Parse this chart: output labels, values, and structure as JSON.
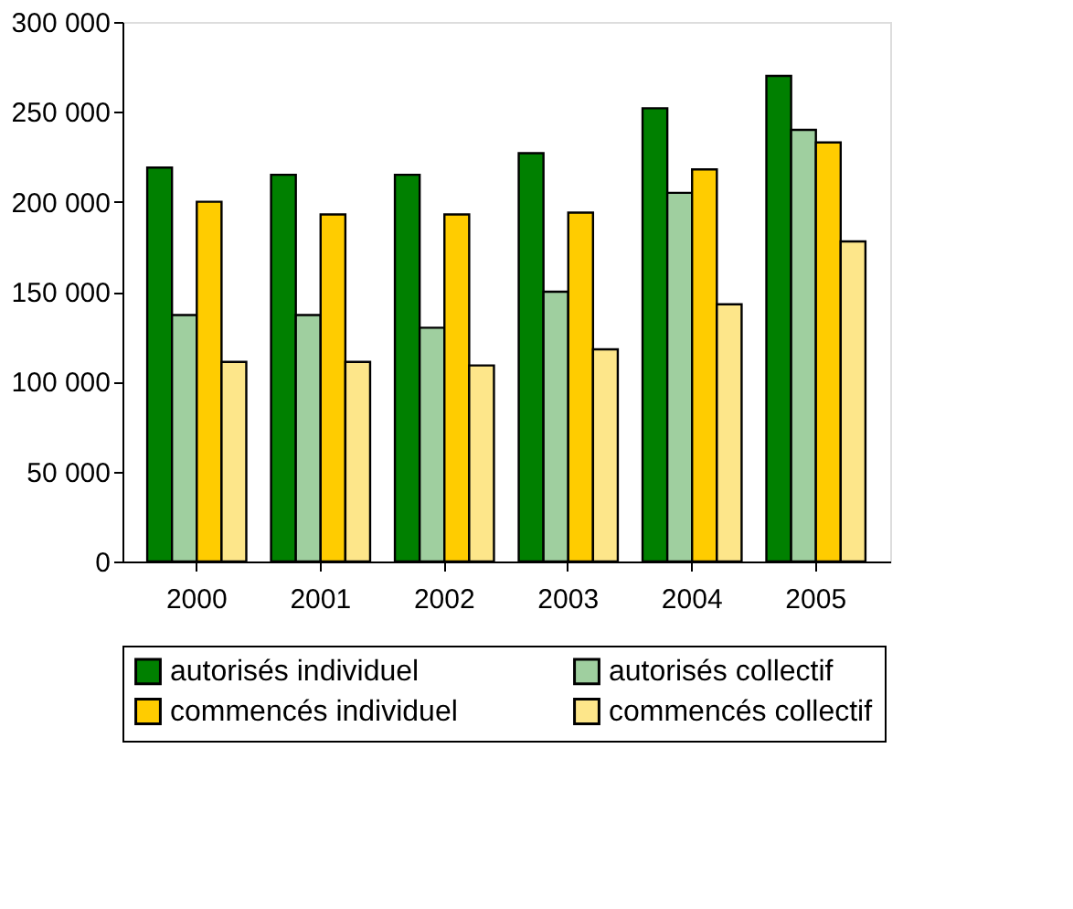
{
  "chart_data": {
    "type": "bar",
    "categories": [
      "2000",
      "2001",
      "2002",
      "2003",
      "2004",
      "2005"
    ],
    "series": [
      {
        "name": "autorisés individuel",
        "color": "#008000",
        "values": [
          219000,
          215000,
          215000,
          227000,
          252000,
          270000
        ]
      },
      {
        "name": "autorisés collectif",
        "color": "#9fcf9f",
        "values": [
          137000,
          137000,
          130000,
          150000,
          205000,
          240000
        ]
      },
      {
        "name": "commencés individuel",
        "color": "#ffcc00",
        "values": [
          200000,
          193000,
          193000,
          194000,
          218000,
          233000
        ]
      },
      {
        "name": "commencés collectif",
        "color": "#fde68a",
        "values": [
          111000,
          111000,
          109000,
          118000,
          143000,
          178000
        ]
      }
    ],
    "ylim": [
      0,
      300000
    ],
    "yticks": [
      {
        "value": 0,
        "label": "0"
      },
      {
        "value": 50000,
        "label": "50 000"
      },
      {
        "value": 100000,
        "label": "100 000"
      },
      {
        "value": 150000,
        "label": "150 000"
      },
      {
        "value": 200000,
        "label": "200 000"
      },
      {
        "value": 250000,
        "label": "250 000"
      },
      {
        "value": 300000,
        "label": "300 000"
      }
    ],
    "grid": false,
    "legend": "bottom"
  }
}
